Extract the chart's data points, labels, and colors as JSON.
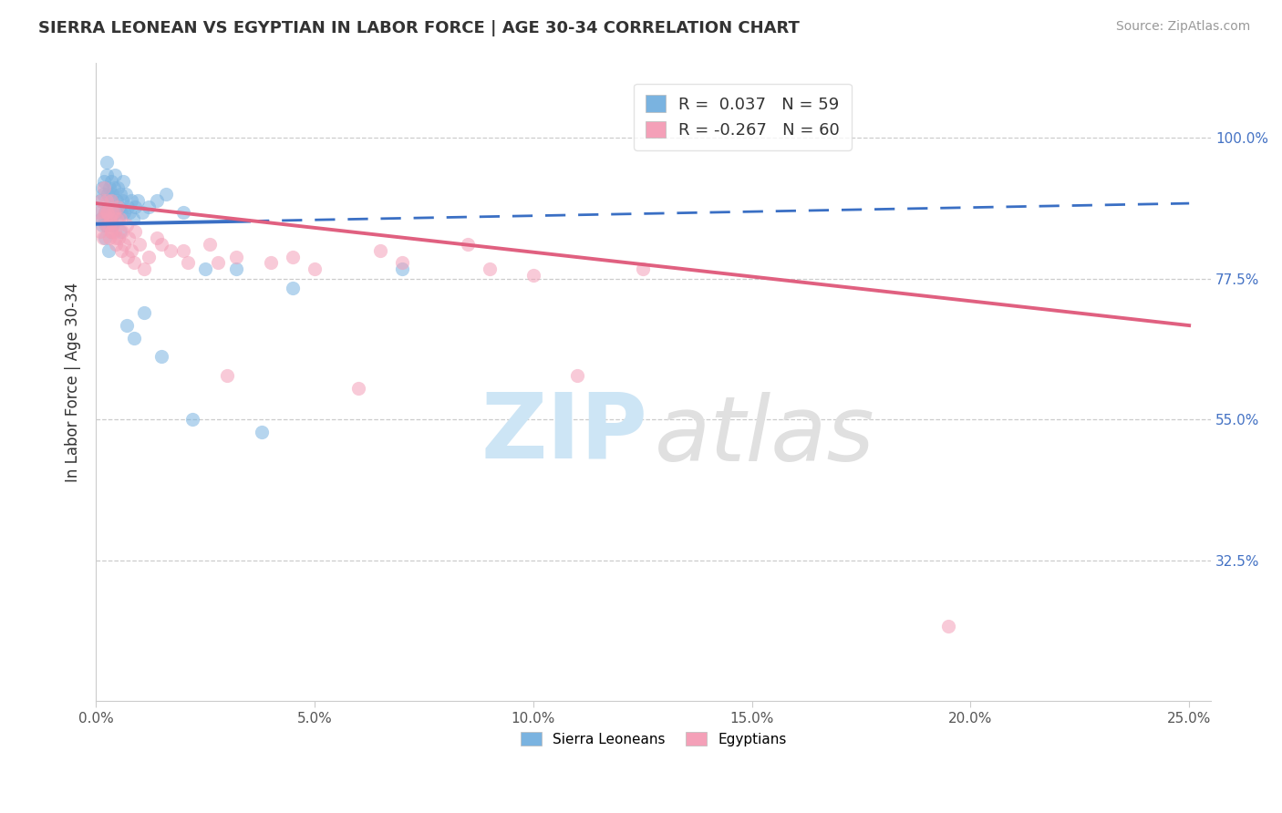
{
  "title": "SIERRA LEONEAN VS EGYPTIAN IN LABOR FORCE | AGE 30-34 CORRELATION CHART",
  "source": "Source: ZipAtlas.com",
  "ylabel": "In Labor Force | Age 30-34",
  "x_ticks": [
    0.0,
    5.0,
    10.0,
    15.0,
    20.0,
    25.0
  ],
  "x_tick_labels": [
    "0.0%",
    "5.0%",
    "10.0%",
    "15.0%",
    "20.0%",
    "25.0%"
  ],
  "y_ticks": [
    0.325,
    0.55,
    0.775,
    1.0
  ],
  "y_tick_labels": [
    "32.5%",
    "55.0%",
    "77.5%",
    "100.0%"
  ],
  "xlim": [
    0.0,
    25.5
  ],
  "ylim": [
    0.1,
    1.12
  ],
  "legend_blue_label": "R =  0.037   N = 59",
  "legend_pink_label": "R = -0.267   N = 60",
  "blue_color": "#7ab3e0",
  "pink_color": "#f4a0b8",
  "blue_line_color": "#3a6fc4",
  "pink_line_color": "#e06080",
  "blue_scatter_x": [
    0.08,
    0.1,
    0.12,
    0.14,
    0.16,
    0.18,
    0.2,
    0.22,
    0.24,
    0.25,
    0.26,
    0.28,
    0.3,
    0.32,
    0.34,
    0.35,
    0.36,
    0.38,
    0.4,
    0.42,
    0.44,
    0.46,
    0.48,
    0.5,
    0.52,
    0.54,
    0.56,
    0.58,
    0.6,
    0.62,
    0.64,
    0.68,
    0.72,
    0.76,
    0.8,
    0.85,
    0.9,
    0.95,
    1.05,
    1.2,
    1.4,
    1.6,
    2.0,
    2.5,
    3.2,
    4.5,
    7.0,
    0.15,
    0.2,
    0.28,
    0.38,
    0.45,
    0.55,
    0.7,
    0.88,
    1.1,
    1.5,
    2.2,
    3.8
  ],
  "blue_scatter_y": [
    0.88,
    0.9,
    0.87,
    0.92,
    0.91,
    0.93,
    0.88,
    0.86,
    0.94,
    0.96,
    0.91,
    0.89,
    0.92,
    0.88,
    0.9,
    0.87,
    0.93,
    0.91,
    0.89,
    0.92,
    0.94,
    0.88,
    0.9,
    0.92,
    0.87,
    0.89,
    0.91,
    0.88,
    0.9,
    0.93,
    0.88,
    0.91,
    0.89,
    0.88,
    0.9,
    0.87,
    0.89,
    0.9,
    0.88,
    0.89,
    0.9,
    0.91,
    0.88,
    0.79,
    0.79,
    0.76,
    0.79,
    0.86,
    0.84,
    0.82,
    0.86,
    0.88,
    0.85,
    0.7,
    0.68,
    0.72,
    0.65,
    0.55,
    0.53
  ],
  "pink_scatter_x": [
    0.08,
    0.1,
    0.12,
    0.14,
    0.16,
    0.18,
    0.2,
    0.22,
    0.24,
    0.26,
    0.28,
    0.3,
    0.32,
    0.34,
    0.36,
    0.38,
    0.4,
    0.42,
    0.44,
    0.46,
    0.48,
    0.5,
    0.52,
    0.55,
    0.6,
    0.65,
    0.7,
    0.75,
    0.8,
    0.9,
    1.0,
    1.2,
    1.4,
    1.7,
    2.1,
    2.6,
    3.2,
    4.0,
    5.0,
    6.5,
    8.5,
    10.0,
    12.5,
    0.25,
    0.35,
    0.45,
    0.58,
    0.72,
    0.88,
    1.1,
    1.5,
    2.0,
    2.8,
    4.5,
    7.0,
    9.0,
    19.5,
    3.0,
    6.0,
    11.0
  ],
  "pink_scatter_y": [
    0.88,
    0.85,
    0.9,
    0.87,
    0.84,
    0.92,
    0.88,
    0.86,
    0.9,
    0.88,
    0.86,
    0.84,
    0.87,
    0.85,
    0.9,
    0.88,
    0.86,
    0.88,
    0.85,
    0.83,
    0.87,
    0.89,
    0.84,
    0.87,
    0.85,
    0.83,
    0.86,
    0.84,
    0.82,
    0.85,
    0.83,
    0.81,
    0.84,
    0.82,
    0.8,
    0.83,
    0.81,
    0.8,
    0.79,
    0.82,
    0.83,
    0.78,
    0.79,
    0.88,
    0.85,
    0.84,
    0.82,
    0.81,
    0.8,
    0.79,
    0.83,
    0.82,
    0.8,
    0.81,
    0.8,
    0.79,
    0.22,
    0.62,
    0.6,
    0.62
  ],
  "blue_line_x0": 0.0,
  "blue_line_x_solid_end": 3.5,
  "blue_line_x1": 25.0,
  "blue_line_y0": 0.862,
  "blue_line_y1": 0.895,
  "pink_line_x0": 0.0,
  "pink_line_x1": 25.0,
  "pink_line_y0": 0.895,
  "pink_line_y1": 0.7,
  "background_color": "#ffffff",
  "scatter_alpha": 0.55,
  "scatter_size": 120
}
